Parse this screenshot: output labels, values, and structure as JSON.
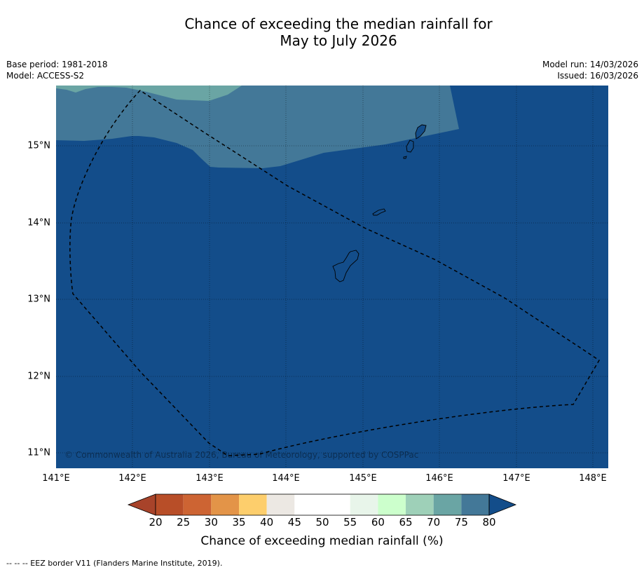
{
  "title": {
    "line1": "Chance of exceeding the median rainfall for",
    "line2": "May to July 2026"
  },
  "meta_left": {
    "base_period": "Base period: 1981-2018",
    "model": "Model: ACCESS-S2"
  },
  "meta_right": {
    "model_run": "Model run: 14/03/2026",
    "issued": "Issued: 16/03/2026"
  },
  "lat_labels": [
    "15°N",
    "14°N",
    "13°N",
    "12°N",
    "11°N"
  ],
  "lon_labels": [
    "141°E",
    "142°E",
    "143°E",
    "144°E",
    "145°E",
    "146°E",
    "147°E",
    "148°E"
  ],
  "copyright": "© Commonwealth of Australia 2026, Bureau of Meteorology, supported by COSPPac",
  "colorbar": {
    "ticks": [
      "20",
      "25",
      "30",
      "35",
      "40",
      "45",
      "50",
      "55",
      "60",
      "65",
      "70",
      "75",
      "80"
    ],
    "label": "Chance of exceeding median rainfall (%)",
    "colors": [
      "#a8432a",
      "#b84e28",
      "#cd6433",
      "#e39448",
      "#fdce6c",
      "#ece8e3",
      "#ffffff",
      "#ffffff",
      "#e8f5ea",
      "#ccffcc",
      "#9ed0b8",
      "#6aa5a4",
      "#437898",
      "#134d8a"
    ]
  },
  "footnote": "--  --  -- EEZ border V11 (Flanders Marine Institute, 2019).",
  "map_colors": {
    "ocean_80_plus": "#134d8a",
    "band_75_80": "#437898",
    "band_70_75": "#6aa5a4"
  }
}
